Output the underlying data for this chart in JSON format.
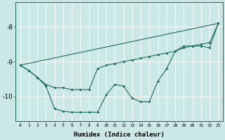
{
  "xlabel": "Humidex (Indice chaleur)",
  "background_color": "#cce8e6",
  "line_color": "#1a6b5e",
  "grid_color": "#ffffff",
  "ylim": [
    -10.7,
    -7.3
  ],
  "xlim": [
    -0.5,
    23.5
  ],
  "yticks": [
    -10,
    -9,
    -8
  ],
  "xticks": [
    0,
    1,
    2,
    3,
    4,
    5,
    6,
    7,
    8,
    9,
    10,
    11,
    12,
    13,
    14,
    15,
    16,
    17,
    18,
    19,
    20,
    21,
    22,
    23
  ],
  "series1_x": [
    0,
    1,
    2,
    3,
    4,
    5,
    6,
    7,
    8,
    9,
    10,
    11,
    12,
    13,
    14,
    15,
    16,
    17,
    18,
    19,
    20,
    21,
    22,
    23
  ],
  "series1_y": [
    -9.1,
    -9.25,
    -9.45,
    -9.7,
    -10.35,
    -10.42,
    -10.45,
    -10.45,
    -10.45,
    -10.45,
    -9.95,
    -9.65,
    -9.7,
    -10.05,
    -10.15,
    -10.15,
    -9.55,
    -9.2,
    -8.7,
    -8.55,
    -8.55,
    -8.55,
    -8.6,
    -7.9
  ],
  "series2_x": [
    0,
    1,
    2,
    3,
    4,
    5,
    6,
    7,
    8,
    9,
    10,
    11,
    12,
    13,
    14,
    15,
    16,
    17,
    18,
    19,
    20,
    21,
    22,
    23
  ],
  "series2_y": [
    -9.1,
    -9.25,
    -9.45,
    -9.65,
    -9.75,
    -9.75,
    -9.8,
    -9.8,
    -9.8,
    -9.2,
    -9.1,
    -9.05,
    -9.0,
    -8.95,
    -8.9,
    -8.85,
    -8.8,
    -8.75,
    -8.7,
    -8.6,
    -8.55,
    -8.5,
    -8.45,
    -7.9
  ],
  "series3_x": [
    0,
    23
  ],
  "series3_y": [
    -9.1,
    -7.9
  ]
}
